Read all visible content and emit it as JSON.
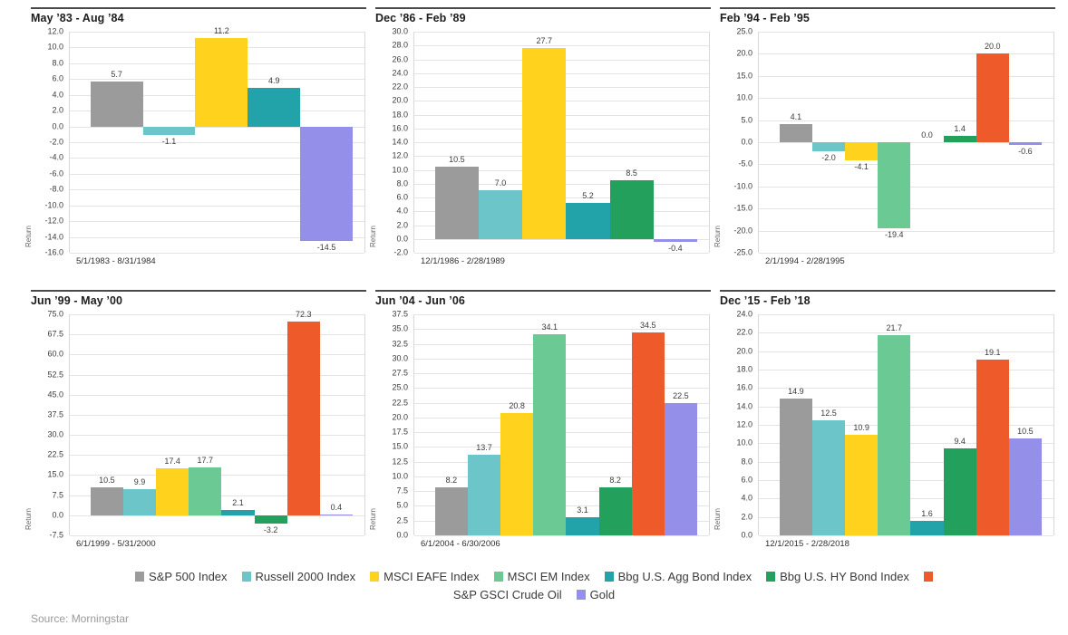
{
  "page": {
    "source_text": "Source: Morningstar"
  },
  "legend": {
    "series": [
      {
        "name": "S&P 500 Index",
        "color": "#9b9b9b"
      },
      {
        "name": "Russell 2000 Index",
        "color": "#6cc5c9"
      },
      {
        "name": "MSCI EAFE Index",
        "color": "#ffd21e"
      },
      {
        "name": "MSCI EM Index",
        "color": "#6bc993"
      },
      {
        "name": "Bbg U.S. Agg Bond Index",
        "color": "#21a3a9"
      },
      {
        "name": "Bbg U.S. HY Bond Index",
        "color": "#23a05c"
      },
      {
        "name": "S&P GSCI Crude Oil",
        "color": "#ee5a2a"
      },
      {
        "name": "Gold",
        "color": "#948fe8"
      }
    ]
  },
  "chart_data": [
    {
      "type": "bar",
      "title": "May ’83 - Aug ’84",
      "subtitle": "5/1/1983 - 8/31/1984",
      "ylabel": "Return",
      "ylim": [
        -16.0,
        12.0
      ],
      "ytick_step": 2.0,
      "grid": true,
      "series": [
        {
          "name": "S&P 500 Index",
          "value": 5.7
        },
        {
          "name": "Russell 2000 Index",
          "value": -1.1
        },
        {
          "name": "MSCI EAFE Index",
          "value": 11.2
        },
        {
          "name": "Bbg U.S. Agg Bond Index",
          "value": 4.9
        },
        {
          "name": "Gold",
          "value": -14.5
        }
      ]
    },
    {
      "type": "bar",
      "title": "Dec ’86 - Feb ’89",
      "subtitle": "12/1/1986 - 2/28/1989",
      "ylabel": "Return",
      "ylim": [
        -2.0,
        30.0
      ],
      "ytick_step": 2.0,
      "grid": true,
      "series": [
        {
          "name": "S&P 500 Index",
          "value": 10.5
        },
        {
          "name": "Russell 2000 Index",
          "value": 7.0
        },
        {
          "name": "MSCI EAFE Index",
          "value": 27.7
        },
        {
          "name": "Bbg U.S. Agg Bond Index",
          "value": 5.2
        },
        {
          "name": "Bbg U.S. HY Bond Index",
          "value": 8.5
        },
        {
          "name": "Gold",
          "value": -0.4
        }
      ]
    },
    {
      "type": "bar",
      "title": "Feb ’94 - Feb ’95",
      "subtitle": "2/1/1994 - 2/28/1995",
      "ylabel": "Return",
      "ylim": [
        -25.0,
        25.0
      ],
      "ytick_step": 5.0,
      "grid": true,
      "series": [
        {
          "name": "S&P 500 Index",
          "value": 4.1
        },
        {
          "name": "Russell 2000 Index",
          "value": -2.0
        },
        {
          "name": "MSCI EAFE Index",
          "value": -4.1
        },
        {
          "name": "MSCI EM Index",
          "value": -19.4
        },
        {
          "name": "Bbg U.S. Agg Bond Index",
          "value": 0.0
        },
        {
          "name": "Bbg U.S. HY Bond Index",
          "value": 1.4
        },
        {
          "name": "S&P GSCI Crude Oil",
          "value": 20.0
        },
        {
          "name": "Gold",
          "value": -0.6
        }
      ]
    },
    {
      "type": "bar",
      "title": "Jun ’99 - May ’00",
      "subtitle": "6/1/1999 - 5/31/2000",
      "ylabel": "Return",
      "ylim": [
        -7.5,
        75.0
      ],
      "ytick_step": 7.5,
      "grid": true,
      "series": [
        {
          "name": "S&P 500 Index",
          "value": 10.5
        },
        {
          "name": "Russell 2000 Index",
          "value": 9.9
        },
        {
          "name": "MSCI EAFE Index",
          "value": 17.4
        },
        {
          "name": "MSCI EM Index",
          "value": 17.7
        },
        {
          "name": "Bbg U.S. Agg Bond Index",
          "value": 2.1
        },
        {
          "name": "Bbg U.S. HY Bond Index",
          "value": -3.2
        },
        {
          "name": "S&P GSCI Crude Oil",
          "value": 72.3
        },
        {
          "name": "Gold",
          "value": 0.4
        }
      ]
    },
    {
      "type": "bar",
      "title": "Jun ’04 - Jun ’06",
      "subtitle": "6/1/2004 - 6/30/2006",
      "ylabel": "Return",
      "ylim": [
        0.0,
        37.5
      ],
      "ytick_step": 2.5,
      "grid": true,
      "series": [
        {
          "name": "S&P 500 Index",
          "value": 8.2
        },
        {
          "name": "Russell 2000 Index",
          "value": 13.7
        },
        {
          "name": "MSCI EAFE Index",
          "value": 20.8
        },
        {
          "name": "MSCI EM Index",
          "value": 34.1
        },
        {
          "name": "Bbg U.S. Agg Bond Index",
          "value": 3.1
        },
        {
          "name": "Bbg U.S. HY Bond Index",
          "value": 8.2
        },
        {
          "name": "S&P GSCI Crude Oil",
          "value": 34.5
        },
        {
          "name": "Gold",
          "value": 22.5
        }
      ]
    },
    {
      "type": "bar",
      "title": "Dec ’15 - Feb ’18",
      "subtitle": "12/1/2015 - 2/28/2018",
      "ylabel": "Return",
      "ylim": [
        0.0,
        24.0
      ],
      "ytick_step": 2.0,
      "grid": true,
      "series": [
        {
          "name": "S&P 500 Index",
          "value": 14.9
        },
        {
          "name": "Russell 2000 Index",
          "value": 12.5
        },
        {
          "name": "MSCI EAFE Index",
          "value": 10.9
        },
        {
          "name": "MSCI EM Index",
          "value": 21.7
        },
        {
          "name": "Bbg U.S. Agg Bond Index",
          "value": 1.6
        },
        {
          "name": "Bbg U.S. HY Bond Index",
          "value": 9.4
        },
        {
          "name": "S&P GSCI Crude Oil",
          "value": 19.1
        },
        {
          "name": "Gold",
          "value": 10.5
        }
      ]
    }
  ]
}
